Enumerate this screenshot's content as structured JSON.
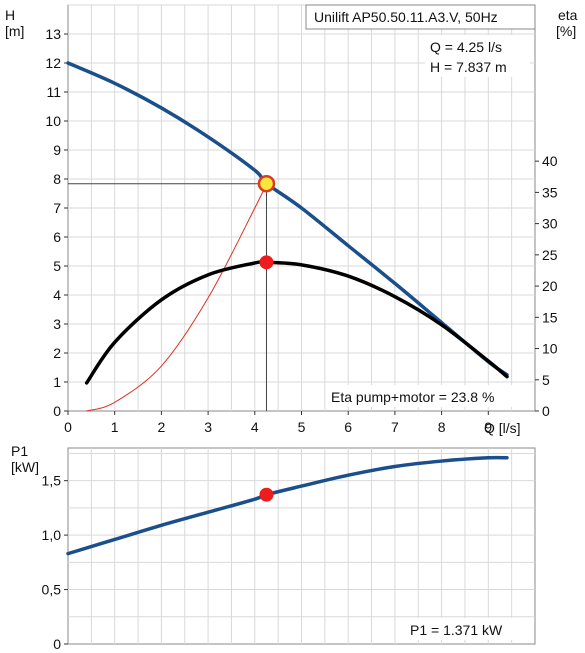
{
  "chart_data": [
    {
      "type": "line",
      "title": "Unilift AP50.50.11.A3.V, 50Hz",
      "x_axis_label": "Q [l/s]",
      "x_ticks": [
        "0",
        "1",
        "2",
        "3",
        "4",
        "5",
        "6",
        "7",
        "8",
        "9"
      ],
      "xlim": [
        0,
        10
      ],
      "y_left_label_line1": "H",
      "y_left_label_line2": "[m]",
      "y_left_ticks": [
        "0",
        "1",
        "2",
        "3",
        "4",
        "5",
        "6",
        "7",
        "8",
        "9",
        "10",
        "11",
        "12",
        "13"
      ],
      "y_left_lim": [
        0,
        14
      ],
      "y_right_label_line1": "eta",
      "y_right_label_line2": "[%]",
      "y_right_ticks": [
        "0",
        "5",
        "10",
        "15",
        "20",
        "25",
        "30",
        "35",
        "40"
      ],
      "y_right_lim": [
        0,
        65
      ],
      "grid": true,
      "series": [
        {
          "axis": "H",
          "color": "#1a4f8b",
          "x": [
            0,
            1,
            2,
            3,
            4,
            4.25,
            5,
            6,
            7,
            8,
            9,
            9.4
          ],
          "y": [
            12.0,
            11.3,
            10.45,
            9.45,
            8.3,
            7.85,
            7.0,
            5.7,
            4.4,
            3.05,
            1.7,
            1.25
          ]
        },
        {
          "axis": "eta",
          "color": "#000000",
          "x": [
            0.4,
            1,
            2,
            3,
            4,
            4.25,
            5,
            6,
            7,
            8,
            9,
            9.4
          ],
          "y": [
            4.5,
            11,
            17.8,
            21.8,
            23.7,
            23.8,
            23.4,
            21.6,
            18.3,
            13.8,
            8.0,
            5.5
          ]
        },
        {
          "axis": "H",
          "color": "#e03020",
          "x": [
            0.4,
            1,
            2,
            3,
            4,
            4.25
          ],
          "y": [
            0,
            0.3,
            1.55,
            3.9,
            7.0,
            7.837
          ]
        }
      ],
      "operating_point": {
        "q_label": "Q = 4.25 l/s",
        "h_label": "H = 7.837 m",
        "q": 4.25,
        "h": 7.837,
        "eta": 23.8
      },
      "annotation": "Eta pump+motor = 23.8 %"
    },
    {
      "type": "line",
      "x_axis_label": "",
      "xlim": [
        0,
        10
      ],
      "y_label_line1": "P1",
      "y_label_line2": "[kW]",
      "y_ticks": [
        "0",
        "0,5",
        "1,0",
        "1,5"
      ],
      "ylim": [
        0,
        1.8
      ],
      "grid": true,
      "series": [
        {
          "axis": "P1",
          "color": "#1a4f8b",
          "x": [
            0,
            1,
            2,
            3,
            4,
            4.25,
            5,
            6,
            7,
            8,
            9,
            9.4
          ],
          "y": [
            0.83,
            0.96,
            1.09,
            1.21,
            1.33,
            1.371,
            1.45,
            1.55,
            1.63,
            1.68,
            1.71,
            1.71
          ]
        }
      ],
      "operating_point": {
        "q": 4.25,
        "p1": 1.371
      },
      "annotation": "P1 = 1.371 kW"
    }
  ]
}
